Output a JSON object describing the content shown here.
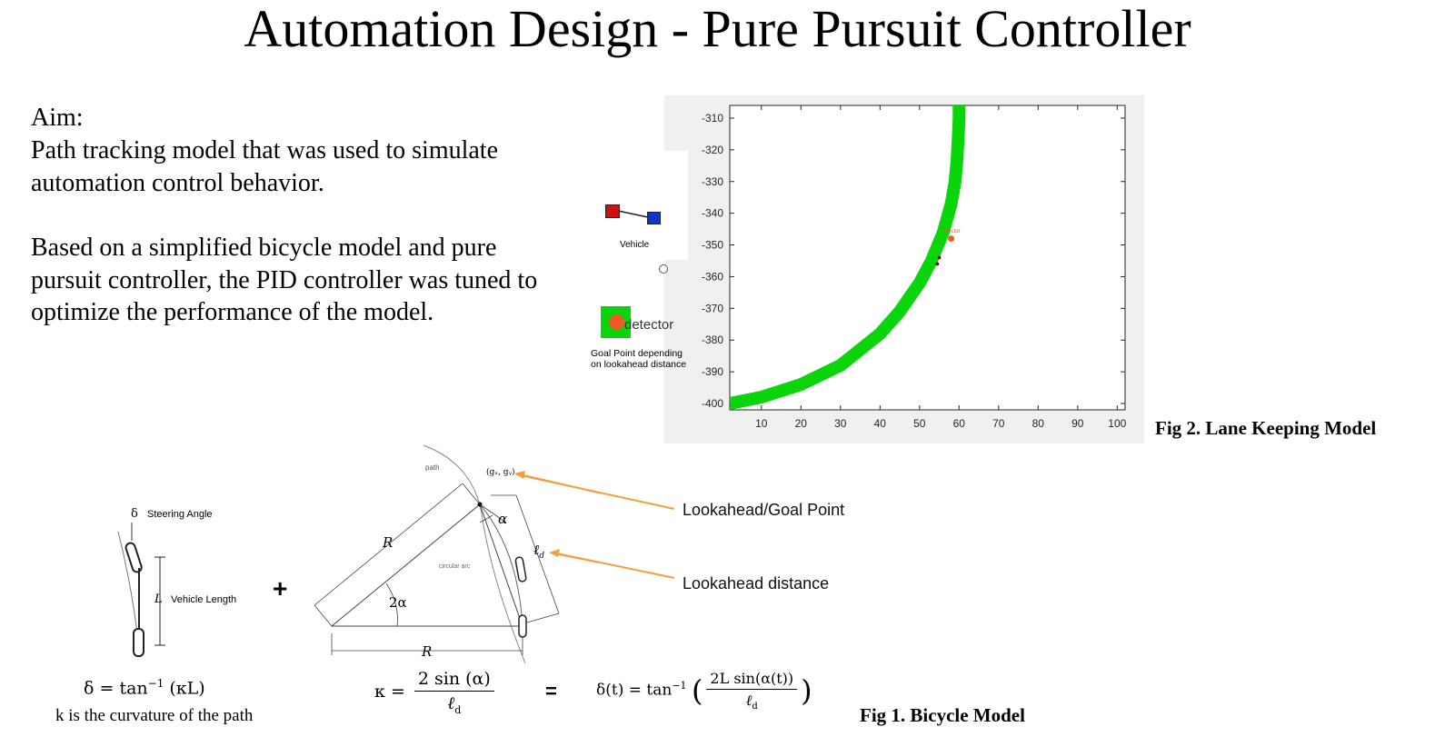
{
  "title": "Automation Design - Pure Pursuit Controller",
  "aim": {
    "heading": "Aim:",
    "line1": "Path tracking model that was used to simulate",
    "line2": "automation control behavior.",
    "para2_line1": "Based on a simplified bicycle model and pure",
    "para2_line2": "pursuit controller, the PID controller was tuned to",
    "para2_line3": "optimize the performance of the model."
  },
  "lane_model": {
    "caption": "Fig 2. Lane Keeping Model",
    "vehicle_label": "Vehicle",
    "detector_label": "detector",
    "goal_label_line1": "Goal Point depending",
    "goal_label_line2": "on lookahead distance",
    "small_detector_label": "detector",
    "colors": {
      "path": "#0ad40a",
      "detector": "#f05a28",
      "vehicle_front": "#cc1111",
      "vehicle_rear": "#1133cc"
    }
  },
  "chart_data": {
    "type": "line",
    "xlim": [
      2,
      102
    ],
    "ylim": [
      -402,
      -306
    ],
    "x_ticks": [
      10,
      20,
      30,
      40,
      50,
      60,
      70,
      80,
      90,
      100
    ],
    "y_ticks": [
      -310,
      -320,
      -330,
      -340,
      -350,
      -360,
      -370,
      -380,
      -390,
      -400
    ],
    "grid": false,
    "series": [
      {
        "x": [
          2,
          10,
          20,
          30,
          40,
          45,
          50,
          53,
          56,
          58,
          59,
          59.5,
          59.8,
          60,
          60
        ],
        "y": [
          -400,
          -398,
          -394,
          -388,
          -378,
          -371,
          -362,
          -355,
          -346,
          -337,
          -330,
          -323,
          -316,
          -310,
          -306
        ]
      }
    ],
    "detector_point": {
      "x": 58,
      "y": -348
    },
    "vehicle_points": [
      {
        "x": 55,
        "y": -354
      },
      {
        "x": 54.5,
        "y": -356
      }
    ]
  },
  "bicycle": {
    "caption": "Fig 1. Bicycle Model",
    "steering_symbol": "δ",
    "steering_label": "Steering Angle",
    "length_symbol": "L",
    "length_label": "Vehicle Length",
    "plus": "+",
    "path_label": "path",
    "goal_coord": "(gₓ, gᵧ)",
    "R_label": "R",
    "alpha_label": "α",
    "two_alpha_label": "2α",
    "ld_label": "ℓ",
    "ld_sub": "d",
    "arc_label": "circular arc",
    "callout_goal": "Lookahead/Goal Point",
    "callout_distance": "Lookahead distance",
    "callout_color": "#f0a040",
    "formula1_lhs": "δ = tan",
    "formula1_exp": "−1",
    "formula1_rhs": " (κL)",
    "curvature_note": "k is the curvature of the path",
    "kappa_lhs": "κ =",
    "kappa_num": "2 sin (α)",
    "kappa_den": "ℓ",
    "kappa_den_sub": "d",
    "equals": "=",
    "delta_lhs": "δ(t) = tan",
    "delta_exp": "−1",
    "delta_num": "2L sin(α(t))",
    "delta_den": "ℓ",
    "delta_den_sub": "d"
  }
}
